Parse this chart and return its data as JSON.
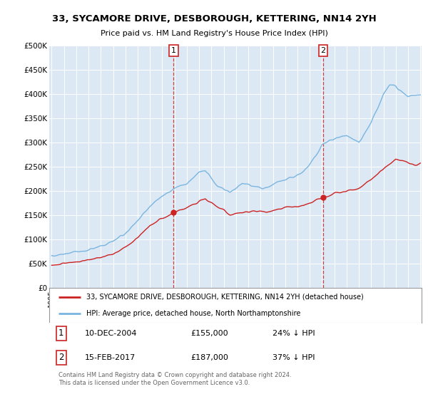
{
  "title": "33, SYCAMORE DRIVE, DESBOROUGH, KETTERING, NN14 2YH",
  "subtitle": "Price paid vs. HM Land Registry's House Price Index (HPI)",
  "background_color": "#ffffff",
  "plot_bg_color": "#dce9f5",
  "grid_color": "#ffffff",
  "hpi_color": "#7ab5e0",
  "price_color": "#cc2222",
  "dashed_color": "#cc2222",
  "sale1_year": 2004.917,
  "sale1_price": 155000,
  "sale1_date_str": "10-DEC-2004",
  "sale1_pct": "24% ↓ HPI",
  "sale2_year": 2017.083,
  "sale2_price": 187000,
  "sale2_date_str": "15-FEB-2017",
  "sale2_pct": "37% ↓ HPI",
  "legend_line1": "33, SYCAMORE DRIVE, DESBOROUGH, KETTERING, NN14 2YH (detached house)",
  "legend_line2": "HPI: Average price, detached house, North Northamptonshire",
  "footer": "Contains HM Land Registry data © Crown copyright and database right 2024.\nThis data is licensed under the Open Government Licence v3.0.",
  "ylim": [
    0,
    500000
  ],
  "yticks": [
    0,
    50000,
    100000,
    150000,
    200000,
    250000,
    300000,
    350000,
    400000,
    450000,
    500000
  ],
  "ytick_labels": [
    "£0",
    "£50K",
    "£100K",
    "£150K",
    "£200K",
    "£250K",
    "£300K",
    "£350K",
    "£400K",
    "£450K",
    "£500K"
  ],
  "xmin": 1995,
  "xmax": 2025
}
